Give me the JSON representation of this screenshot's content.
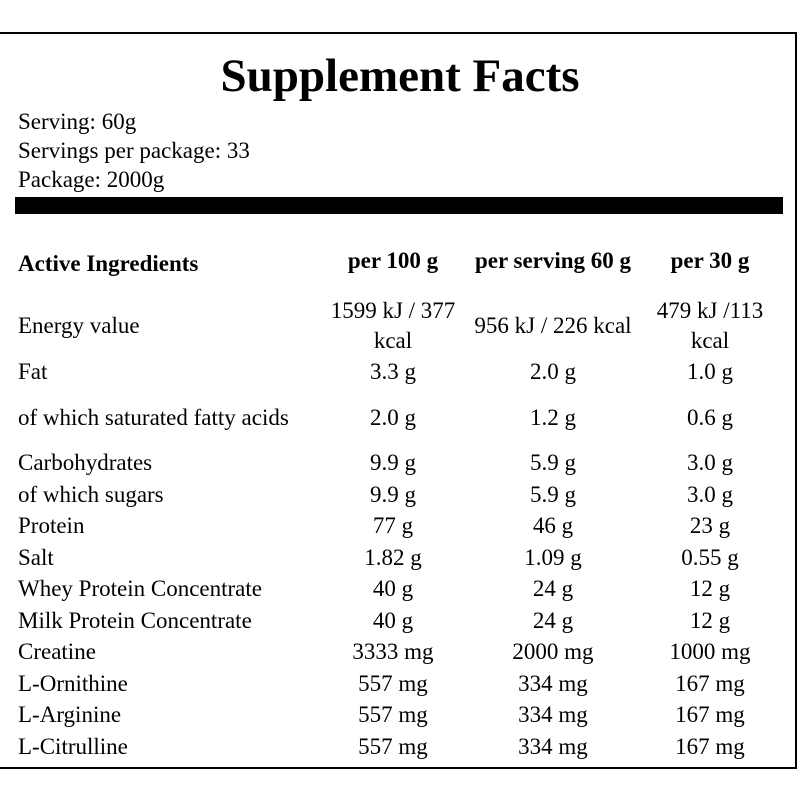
{
  "title": "Supplement Facts",
  "serving": "Serving: 60g",
  "servings_per_package": "Servings per package: 33",
  "package": "Package: 2000g",
  "table": {
    "headers": [
      "Active Ingredients",
      "per 100 g",
      "per serving 60 g",
      "per 30 g"
    ],
    "rows": [
      [
        "Energy value",
        "1599 kJ / 377 kcal",
        "956 kJ / 226 kcal",
        "479 kJ /113 kcal"
      ],
      [
        "Fat",
        "3.3 g",
        "2.0 g",
        "1.0 g"
      ],
      [
        "of which saturated fatty acids",
        "2.0 g",
        "1.2 g",
        "0.6 g"
      ],
      [
        "Carbohydrates",
        "9.9 g",
        "5.9 g",
        "3.0 g"
      ],
      [
        "of which sugars",
        "9.9 g",
        "5.9 g",
        "3.0 g"
      ],
      [
        "Protein",
        "77 g",
        "46 g",
        "23 g"
      ],
      [
        "Salt",
        "1.82 g",
        "1.09 g",
        "0.55 g"
      ],
      [
        "Whey Protein Concentrate",
        "40 g",
        "24 g",
        "12 g"
      ],
      [
        "Milk Protein Concentrate",
        "40 g",
        "24 g",
        "12 g"
      ],
      [
        "Creatine",
        "3333 mg",
        "2000 mg",
        "1000 mg"
      ],
      [
        "L-Ornithine",
        "557 mg",
        "334 mg",
        "167 mg"
      ],
      [
        "L-Arginine",
        "557 mg",
        "334 mg",
        "167 mg"
      ],
      [
        "L-Citrulline",
        "557 mg",
        "334 mg",
        "167 mg"
      ]
    ]
  }
}
